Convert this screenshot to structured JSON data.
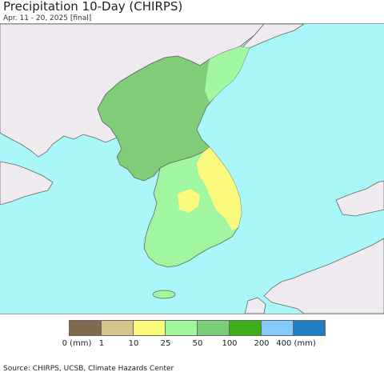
{
  "header": {
    "title": "Precipitation 10-Day (CHIRPS)",
    "subtitle": "Apr. 11 - 20, 2025 [final]"
  },
  "map": {
    "colors": {
      "ocean": "#a9f7f9",
      "foreign_land": "#efeaef",
      "border": "#666666",
      "north_korea": "#80cd78",
      "south_korea_west": "#a1f79f",
      "south_korea_east": "#fbf97e",
      "north_korea_east_highlands": "#a1f79f"
    }
  },
  "legend": {
    "swatches": [
      {
        "color": "#7f6a4d"
      },
      {
        "color": "#d5c48e"
      },
      {
        "color": "#fbfb7a"
      },
      {
        "color": "#a0f79c"
      },
      {
        "color": "#7ccd77"
      },
      {
        "color": "#3cb01b"
      },
      {
        "color": "#83cbfc"
      },
      {
        "color": "#1f7fc4"
      }
    ],
    "labels": [
      "0 (mm)",
      "1",
      "10",
      "25",
      "50",
      "100",
      "200",
      "400 (mm)"
    ]
  },
  "footer": {
    "source": "Source: CHIRPS, UCSB, Climate Hazards Center"
  }
}
